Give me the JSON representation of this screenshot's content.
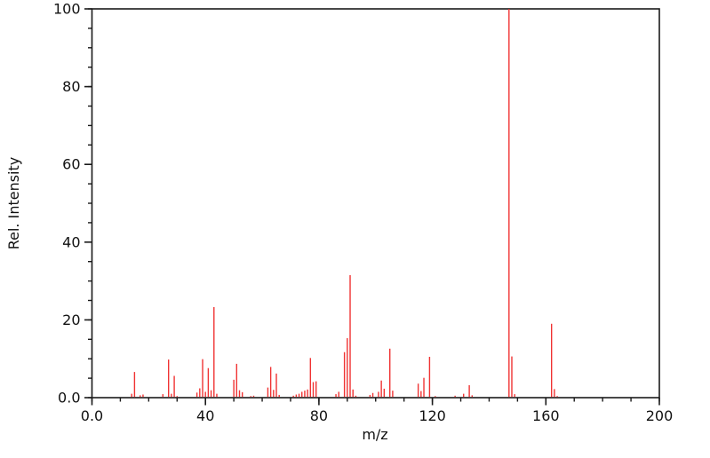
{
  "chart_data": {
    "type": "bar",
    "subtype": "mass-spectrum-stick-plot",
    "title": "",
    "xlabel": "m/z",
    "ylabel": "Rel. Intensity",
    "xlim": [
      0,
      200
    ],
    "ylim": [
      0,
      100
    ],
    "grid": "off",
    "frame": "full-box",
    "background_color": "#ffffff",
    "axis_color": "#1a1a1a",
    "peak_color": "#f03333",
    "x_major_ticks": [
      {
        "value": 0,
        "label": "0.0"
      },
      {
        "value": 40,
        "label": "40"
      },
      {
        "value": 80,
        "label": "80"
      },
      {
        "value": 120,
        "label": "120"
      },
      {
        "value": 160,
        "label": "160"
      },
      {
        "value": 200,
        "label": "200"
      }
    ],
    "x_minor_tick_step": 10,
    "y_major_ticks": [
      {
        "value": 0,
        "label": "0.0"
      },
      {
        "value": 20,
        "label": "20"
      },
      {
        "value": 40,
        "label": "40"
      },
      {
        "value": 60,
        "label": "60"
      },
      {
        "value": 80,
        "label": "80"
      },
      {
        "value": 100,
        "label": "100"
      }
    ],
    "y_minor_tick_step": 5,
    "series": [
      {
        "name": "relative-intensity",
        "points_format": [
          "m/z",
          "rel_intensity_percent"
        ],
        "peaks": [
          [
            14,
            1.0
          ],
          [
            15,
            6.6
          ],
          [
            17,
            0.6
          ],
          [
            18,
            0.8
          ],
          [
            25,
            0.9
          ],
          [
            27,
            9.8
          ],
          [
            28,
            1.0
          ],
          [
            29,
            5.6
          ],
          [
            30,
            0.4
          ],
          [
            37,
            1.3
          ],
          [
            38,
            2.4
          ],
          [
            39,
            9.9
          ],
          [
            40,
            1.5
          ],
          [
            41,
            7.6
          ],
          [
            42,
            1.9
          ],
          [
            43,
            23.3
          ],
          [
            44,
            1.0
          ],
          [
            50,
            4.6
          ],
          [
            51,
            8.7
          ],
          [
            52,
            1.9
          ],
          [
            53,
            1.4
          ],
          [
            56,
            0.4
          ],
          [
            57,
            0.5
          ],
          [
            62,
            2.6
          ],
          [
            63,
            7.9
          ],
          [
            64,
            2.0
          ],
          [
            65,
            6.2
          ],
          [
            66,
            0.7
          ],
          [
            71,
            0.5
          ],
          [
            72,
            0.8
          ],
          [
            73,
            1.0
          ],
          [
            74,
            1.5
          ],
          [
            75,
            1.8
          ],
          [
            76,
            2.1
          ],
          [
            77,
            10.2
          ],
          [
            78,
            4.0
          ],
          [
            79,
            4.2
          ],
          [
            86,
            0.9
          ],
          [
            87,
            1.5
          ],
          [
            89,
            11.7
          ],
          [
            90,
            15.3
          ],
          [
            91,
            31.5
          ],
          [
            92,
            2.1
          ],
          [
            93,
            0.5
          ],
          [
            98,
            0.7
          ],
          [
            99,
            1.2
          ],
          [
            101,
            1.5
          ],
          [
            102,
            4.4
          ],
          [
            103,
            2.3
          ],
          [
            105,
            12.6
          ],
          [
            106,
            1.8
          ],
          [
            115,
            3.6
          ],
          [
            116,
            1.7
          ],
          [
            117,
            5.1
          ],
          [
            119,
            10.5
          ],
          [
            121,
            0.4
          ],
          [
            128,
            0.5
          ],
          [
            131,
            1.0
          ],
          [
            133,
            3.2
          ],
          [
            134,
            0.6
          ],
          [
            147,
            100.0
          ],
          [
            148,
            10.6
          ],
          [
            149,
            0.9
          ],
          [
            162,
            19.0
          ],
          [
            163,
            2.2
          ],
          [
            164,
            0.4
          ]
        ]
      }
    ],
    "base_peak": {
      "mz": 147,
      "intensity": 100.0
    }
  }
}
